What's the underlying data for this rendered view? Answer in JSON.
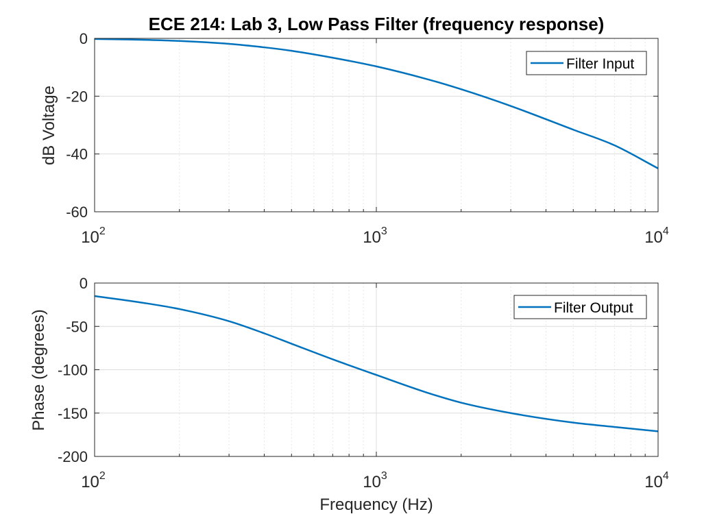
{
  "chart_data": [
    {
      "type": "line",
      "title": "ECE 214: Lab 3, Low Pass Filter (frequency response)",
      "xlabel": "",
      "ylabel": "dB Voltage",
      "xscale": "log",
      "xlim": [
        100,
        10000
      ],
      "ylim": [
        -60,
        0
      ],
      "yticks": [
        0,
        -20,
        -40,
        -60
      ],
      "xticks": [
        {
          "base": "10",
          "exp": "2"
        },
        {
          "base": "10",
          "exp": "3"
        },
        {
          "base": "10",
          "exp": "4"
        }
      ],
      "grid": true,
      "legend_position": "top-right",
      "series": [
        {
          "name": "Filter Input",
          "color": "#0072BD",
          "x": [
            100,
            150,
            200,
            300,
            400,
            500,
            700,
            1000,
            1500,
            2000,
            3000,
            5000,
            7000,
            10000
          ],
          "y": [
            -0.2,
            -0.5,
            -0.9,
            -1.9,
            -3.1,
            -4.3,
            -6.7,
            -9.7,
            -14.0,
            -17.6,
            -23.4,
            -31.6,
            -37.0,
            -45.0
          ]
        }
      ]
    },
    {
      "type": "line",
      "title": "",
      "xlabel": "Frequency (Hz)",
      "ylabel": "Phase (degrees)",
      "xscale": "log",
      "xlim": [
        100,
        10000
      ],
      "ylim": [
        -200,
        0
      ],
      "yticks": [
        0,
        -50,
        -100,
        -150,
        -200
      ],
      "xticks": [
        {
          "base": "10",
          "exp": "2"
        },
        {
          "base": "10",
          "exp": "3"
        },
        {
          "base": "10",
          "exp": "4"
        }
      ],
      "grid": true,
      "legend_position": "top-right",
      "series": [
        {
          "name": "Filter Output",
          "color": "#0072BD",
          "x": [
            100,
            150,
            200,
            300,
            400,
            500,
            700,
            1000,
            1500,
            2000,
            3000,
            5000,
            7000,
            10000
          ],
          "y": [
            -15,
            -23,
            -30,
            -44,
            -58,
            -70,
            -88,
            -106,
            -126,
            -138,
            -150,
            -161,
            -166,
            -171
          ]
        }
      ]
    }
  ]
}
